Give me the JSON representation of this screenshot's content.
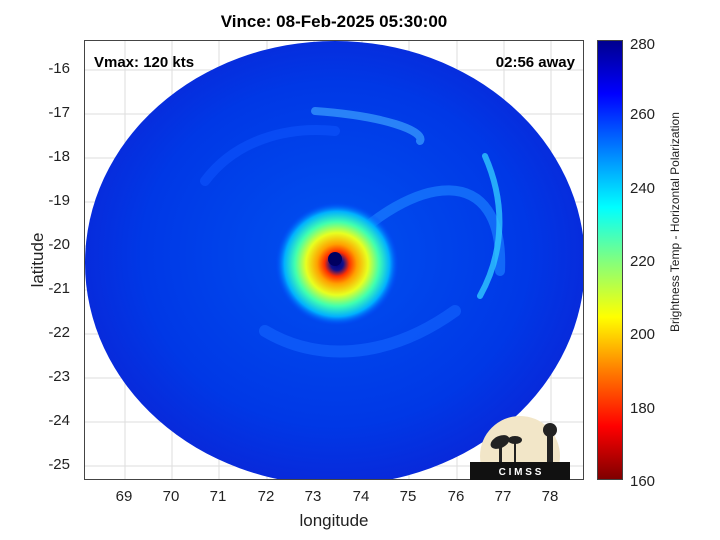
{
  "title": "Vince: 08-Feb-2025 05:30:00",
  "vmax_label": "Vmax: 120 kts",
  "time_label": "02:56 away",
  "axes": {
    "xlabel": "longitude",
    "ylabel": "latitude",
    "x_ticks": [
      "69",
      "70",
      "71",
      "72",
      "73",
      "74",
      "75",
      "76",
      "77",
      "78"
    ],
    "y_ticks": [
      "-16",
      "-17",
      "-18",
      "-19",
      "-20",
      "-21",
      "-22",
      "-23",
      "-24",
      "-25"
    ]
  },
  "colorbar": {
    "label": "Brightness Temp - Horizontal Polarization",
    "ticks": [
      "280",
      "260",
      "240",
      "220",
      "200",
      "180",
      "160"
    ]
  },
  "logo_text": "C I M S S",
  "storm": {
    "center_lon": 73.3,
    "center_lat": -20.3,
    "xlim": [
      68.2,
      78.7
    ],
    "ylim": [
      -25.3,
      -15.4
    ]
  }
}
